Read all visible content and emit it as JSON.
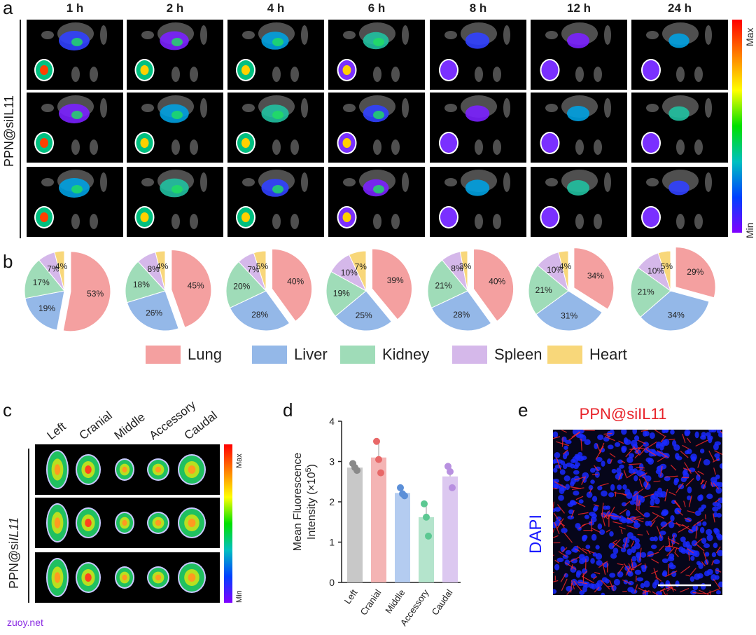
{
  "panel_a": {
    "letter": "a",
    "row_label": "PPN@siIL11",
    "timepoints": [
      "1 h",
      "2 h",
      "4 h",
      "6 h",
      "8 h",
      "12 h",
      "24 h"
    ],
    "colorbar": {
      "max_label": "Max",
      "min_label": "Min"
    }
  },
  "panel_b": {
    "letter": "b",
    "legend": [
      {
        "name": "Lung",
        "color": "#f4a0a0"
      },
      {
        "name": "Liver",
        "color": "#94b8e8"
      },
      {
        "name": "Kidney",
        "color": "#9fdcb8"
      },
      {
        "name": "Spleen",
        "color": "#d5b8ea"
      },
      {
        "name": "Heart",
        "color": "#f8d77a"
      }
    ]
  },
  "panel_c": {
    "letter": "c",
    "lobes": [
      "Left",
      "Cranial",
      "Middle",
      "Accessory",
      "Caudal"
    ],
    "row_label_prefix": "PPN@si",
    "row_label_italic": "IL11",
    "colorbar": {
      "max_label": "Max",
      "min_label": "Min"
    }
  },
  "panel_d": {
    "letter": "d"
  },
  "panel_e": {
    "letter": "e",
    "title": "PPN@siIL11",
    "side_label": "DAPI",
    "title_color": "#e8232a",
    "side_color": "#1a1aff"
  },
  "footer": "zuoy.net",
  "chart_data": [
    {
      "type": "pie",
      "categories": [
        "Lung",
        "Liver",
        "Kidney",
        "Spleen",
        "Heart"
      ],
      "series": [
        {
          "name": "1 h",
          "values": [
            53,
            19,
            17,
            7,
            4
          ]
        },
        {
          "name": "2 h",
          "values": [
            45,
            26,
            18,
            8,
            4
          ]
        },
        {
          "name": "4 h",
          "values": [
            40,
            28,
            20,
            7,
            5
          ]
        },
        {
          "name": "6 h",
          "values": [
            39,
            25,
            19,
            10,
            7
          ]
        },
        {
          "name": "8 h",
          "values": [
            40,
            28,
            21,
            8,
            3
          ]
        },
        {
          "name": "12 h",
          "values": [
            34,
            31,
            21,
            10,
            4
          ]
        },
        {
          "name": "24 h",
          "values": [
            29,
            34,
            21,
            10,
            5
          ]
        }
      ]
    },
    {
      "type": "bar",
      "categories": [
        "Left",
        "Cranial",
        "Middle",
        "Accessory",
        "Caudal"
      ],
      "values": [
        2.85,
        3.1,
        2.22,
        1.62,
        2.63
      ],
      "points": [
        [
          2.95,
          2.85,
          2.78
        ],
        [
          3.5,
          3.05,
          2.72
        ],
        [
          2.35,
          2.2,
          2.15
        ],
        [
          1.95,
          1.62,
          1.15
        ],
        [
          2.88,
          2.75,
          2.35
        ]
      ],
      "colors": [
        "#c8c8c8",
        "#f4b4b4",
        "#b4ccf0",
        "#b4e4cc",
        "#dcc8f0"
      ],
      "dot_colors": [
        "#8a8a8a",
        "#e86868",
        "#5b8fd8",
        "#5cc892",
        "#b890e0"
      ],
      "ylabel_line1": "Mean Fluorescence",
      "ylabel_line2": "Intensity (×10",
      "ylabel_sup": "5",
      "ylabel_end": ")",
      "ylim": [
        0,
        4
      ],
      "yticks": [
        0,
        1,
        2,
        3,
        4
      ]
    }
  ]
}
